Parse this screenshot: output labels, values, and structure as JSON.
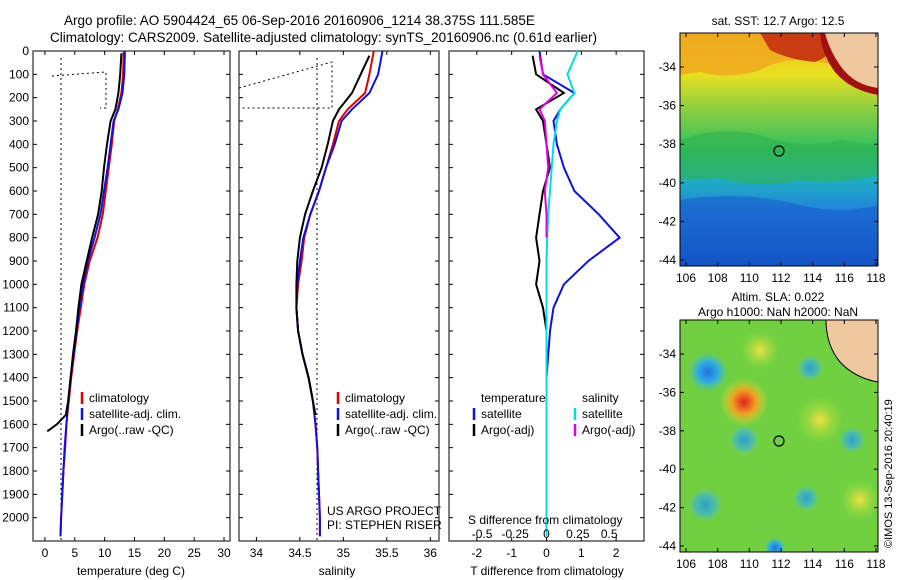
{
  "header": {
    "line1": "Argo profile: AO 5904424_65 06-Sep-2016 20160906_1214 38.375S 111.585E",
    "line2": "Climatology: CARS2009. Satellite-adjusted climatology: synTS_20160906.nc (0.61d earlier)"
  },
  "colors": {
    "climatology": "#e00000",
    "satellite": "#1010e0",
    "argo": "#000000",
    "argo_salinity_diff": "#e000e0",
    "satellite_salinity_diff": "#00e0e0"
  },
  "chart_data": [
    {
      "type": "line",
      "id": "temperature",
      "xlabel": "temperature (deg C)",
      "xticks": [
        0,
        5,
        10,
        15,
        20,
        25,
        30
      ],
      "xlim": [
        -2,
        31
      ],
      "ylim": [
        0,
        2100
      ],
      "yticks": [
        0,
        100,
        200,
        300,
        400,
        500,
        600,
        700,
        800,
        900,
        1000,
        1100,
        1200,
        1300,
        1400,
        1500,
        1600,
        1700,
        1800,
        1900,
        2000
      ],
      "legend": [
        "climatology",
        "satellite-adj. clim.",
        "Argo(..raw -QC)"
      ],
      "series": [
        {
          "name": "climatology",
          "color": "#e00000",
          "points": [
            [
              13.2,
              0
            ],
            [
              13.1,
              100
            ],
            [
              12.8,
              180
            ],
            [
              12.2,
              250
            ],
            [
              11.6,
              300
            ],
            [
              11.2,
              400
            ],
            [
              10.7,
              500
            ],
            [
              10.2,
              600
            ],
            [
              9.7,
              700
            ],
            [
              8.8,
              800
            ],
            [
              7.5,
              900
            ],
            [
              6.6,
              1000
            ],
            [
              6.0,
              1100
            ],
            [
              5.4,
              1200
            ],
            [
              4.9,
              1300
            ],
            [
              4.4,
              1400
            ],
            [
              4.0,
              1500
            ],
            [
              3.6,
              1600
            ],
            [
              3.4,
              1700
            ],
            [
              3.1,
              1800
            ],
            [
              2.9,
              1900
            ],
            [
              2.7,
              2000
            ],
            [
              2.6,
              2080
            ]
          ]
        },
        {
          "name": "satellite-adj. clim.",
          "color": "#1010e0",
          "points": [
            [
              13.4,
              0
            ],
            [
              13.3,
              100
            ],
            [
              13.0,
              180
            ],
            [
              12.3,
              250
            ],
            [
              11.5,
              300
            ],
            [
              11.0,
              400
            ],
            [
              10.5,
              500
            ],
            [
              9.9,
              600
            ],
            [
              9.3,
              700
            ],
            [
              8.3,
              800
            ],
            [
              7.2,
              900
            ],
            [
              6.4,
              1000
            ],
            [
              5.8,
              1100
            ],
            [
              5.3,
              1200
            ],
            [
              4.8,
              1300
            ],
            [
              4.3,
              1400
            ],
            [
              3.9,
              1500
            ],
            [
              3.6,
              1600
            ],
            [
              3.3,
              1700
            ],
            [
              3.1,
              1800
            ],
            [
              2.9,
              1900
            ],
            [
              2.7,
              2000
            ],
            [
              2.6,
              2080
            ]
          ]
        },
        {
          "name": "Argo(..raw -QC)",
          "color": "#000000",
          "points": [
            [
              12.8,
              10
            ],
            [
              12.6,
              100
            ],
            [
              12.3,
              180
            ],
            [
              11.8,
              250
            ],
            [
              11.0,
              300
            ],
            [
              10.4,
              400
            ],
            [
              9.9,
              500
            ],
            [
              9.5,
              600
            ],
            [
              8.9,
              700
            ],
            [
              7.9,
              800
            ],
            [
              7.0,
              900
            ],
            [
              6.1,
              1000
            ],
            [
              5.6,
              1100
            ],
            [
              5.2,
              1200
            ],
            [
              4.7,
              1300
            ],
            [
              4.3,
              1400
            ],
            [
              3.9,
              1500
            ],
            [
              3.5,
              1560
            ],
            [
              2.0,
              1600
            ],
            [
              0.4,
              1630
            ]
          ]
        }
      ]
    },
    {
      "type": "line",
      "id": "salinity",
      "xlabel": "salinity",
      "xticks": [
        34,
        34.5,
        35,
        35.5,
        36
      ],
      "xlim": [
        33.8,
        36.1
      ],
      "ylim": [
        0,
        2100
      ],
      "legend": [
        "climatology",
        "satellite-adj. clim.",
        "Argo(..raw -QC)"
      ],
      "annotation": [
        "US ARGO PROJECT",
        "PI: STEPHEN RISER"
      ],
      "series": [
        {
          "name": "climatology",
          "color": "#e00000",
          "points": [
            [
              35.35,
              0
            ],
            [
              35.3,
              100
            ],
            [
              35.25,
              180
            ],
            [
              35.05,
              250
            ],
            [
              34.95,
              300
            ],
            [
              34.88,
              400
            ],
            [
              34.8,
              500
            ],
            [
              34.72,
              600
            ],
            [
              34.62,
              700
            ],
            [
              34.55,
              800
            ],
            [
              34.52,
              900
            ],
            [
              34.48,
              1000
            ],
            [
              34.46,
              1100
            ],
            [
              34.48,
              1200
            ],
            [
              34.53,
              1300
            ],
            [
              34.6,
              1400
            ],
            [
              34.65,
              1500
            ],
            [
              34.68,
              1600
            ],
            [
              34.7,
              1700
            ],
            [
              34.71,
              1800
            ],
            [
              34.72,
              1900
            ],
            [
              34.73,
              2000
            ],
            [
              34.73,
              2080
            ]
          ]
        },
        {
          "name": "satellite-adj. clim.",
          "color": "#1010e0",
          "points": [
            [
              35.45,
              0
            ],
            [
              35.4,
              100
            ],
            [
              35.3,
              180
            ],
            [
              35.1,
              250
            ],
            [
              34.98,
              300
            ],
            [
              34.9,
              400
            ],
            [
              34.8,
              500
            ],
            [
              34.72,
              600
            ],
            [
              34.62,
              700
            ],
            [
              34.54,
              800
            ],
            [
              34.5,
              900
            ],
            [
              34.47,
              1000
            ],
            [
              34.46,
              1100
            ],
            [
              34.48,
              1200
            ],
            [
              34.53,
              1300
            ],
            [
              34.6,
              1400
            ],
            [
              34.65,
              1500
            ],
            [
              34.68,
              1600
            ],
            [
              34.7,
              1700
            ],
            [
              34.71,
              1800
            ],
            [
              34.72,
              1900
            ],
            [
              34.73,
              2000
            ],
            [
              34.73,
              2080
            ]
          ]
        },
        {
          "name": "Argo(..raw -QC)",
          "color": "#000000",
          "points": [
            [
              35.3,
              20
            ],
            [
              35.2,
              100
            ],
            [
              35.1,
              180
            ],
            [
              34.95,
              250
            ],
            [
              34.88,
              300
            ],
            [
              34.82,
              400
            ],
            [
              34.75,
              500
            ],
            [
              34.65,
              600
            ],
            [
              34.56,
              700
            ],
            [
              34.5,
              800
            ],
            [
              34.47,
              900
            ],
            [
              34.46,
              1000
            ],
            [
              34.46,
              1100
            ],
            [
              34.48,
              1200
            ],
            [
              34.53,
              1300
            ],
            [
              34.6,
              1400
            ],
            [
              34.65,
              1500
            ],
            [
              34.68,
              1560
            ]
          ]
        }
      ]
    },
    {
      "type": "line",
      "id": "difference",
      "xlabel": "T difference from climatology",
      "xticks": [
        -2,
        -1,
        0,
        1,
        2
      ],
      "xlim": [
        -2.8,
        2.8
      ],
      "top_label": "S difference from climatology",
      "top_ticks": [
        "-0.5",
        "-0.25",
        "0",
        "0.25",
        "0.5"
      ],
      "ylim": [
        0,
        2100
      ],
      "legend_temperature": {
        "title": "temperature",
        "items": [
          "satellite",
          "Argo(-adj)"
        ]
      },
      "legend_salinity": {
        "title": "salinity",
        "items": [
          "satellite",
          "Argo(-adj)"
        ]
      },
      "series": [
        {
          "name": "temperature satellite",
          "color": "#1010e0",
          "points": [
            [
              -0.2,
              0
            ],
            [
              -0.1,
              100
            ],
            [
              0.8,
              180
            ],
            [
              0.4,
              250
            ],
            [
              0.2,
              300
            ],
            [
              0.3,
              400
            ],
            [
              0.5,
              500
            ],
            [
              0.8,
              600
            ],
            [
              1.5,
              700
            ],
            [
              2.1,
              800
            ],
            [
              1.2,
              900
            ],
            [
              0.5,
              1000
            ],
            [
              0.2,
              1100
            ],
            [
              0.1,
              1200
            ],
            [
              0.0,
              1400
            ],
            [
              0.0,
              2080
            ]
          ]
        },
        {
          "name": "temperature Argo(-adj)",
          "color": "#000000",
          "points": [
            [
              -0.4,
              20
            ],
            [
              -0.3,
              100
            ],
            [
              0.5,
              180
            ],
            [
              -0.3,
              250
            ],
            [
              -0.1,
              300
            ],
            [
              0.0,
              400
            ],
            [
              0.1,
              500
            ],
            [
              -0.1,
              600
            ],
            [
              -0.2,
              700
            ],
            [
              -0.3,
              800
            ],
            [
              -0.2,
              900
            ],
            [
              -0.3,
              1000
            ],
            [
              -0.1,
              1100
            ],
            [
              0.0,
              1200
            ],
            [
              0.0,
              1560
            ]
          ]
        },
        {
          "name": "salinity satellite",
          "color": "#00e0e0",
          "points": [
            [
              0.9,
              0
            ],
            [
              0.6,
              100
            ],
            [
              0.8,
              180
            ],
            [
              0.4,
              250
            ],
            [
              0.3,
              300
            ],
            [
              0.2,
              400
            ],
            [
              0.15,
              500
            ],
            [
              0.1,
              600
            ],
            [
              0.05,
              700
            ],
            [
              0.02,
              800
            ],
            [
              0.0,
              900
            ],
            [
              0.0,
              2080
            ]
          ]
        },
        {
          "name": "salinity Argo(-adj)",
          "color": "#e000e0",
          "points": [
            [
              -0.2,
              20
            ],
            [
              -0.1,
              100
            ],
            [
              0.3,
              180
            ],
            [
              -0.2,
              250
            ],
            [
              -0.05,
              300
            ],
            [
              0.0,
              400
            ],
            [
              0.05,
              500
            ],
            [
              -0.05,
              600
            ],
            [
              0.0,
              700
            ],
            [
              0.0,
              800
            ]
          ]
        }
      ]
    }
  ],
  "maps": {
    "sst": {
      "title": "sat. SST: 12.7 Argo: 12.5",
      "yticks": [
        "-34",
        "-36",
        "-38",
        "-40",
        "-42",
        "-44"
      ],
      "xticks": [
        "106",
        "108",
        "110",
        "112",
        "114",
        "116",
        "118"
      ]
    },
    "sla": {
      "title_line1": "Altim. SLA: 0.022",
      "title_line2": "Argo h1000: NaN h2000: NaN",
      "yticks": [
        "-34",
        "-36",
        "-38",
        "-40",
        "-42",
        "-44"
      ],
      "xticks": [
        "106",
        "108",
        "110",
        "112",
        "114",
        "116",
        "118"
      ]
    }
  },
  "credit": "©IMOS 13-Sep-2016 20:40:19"
}
